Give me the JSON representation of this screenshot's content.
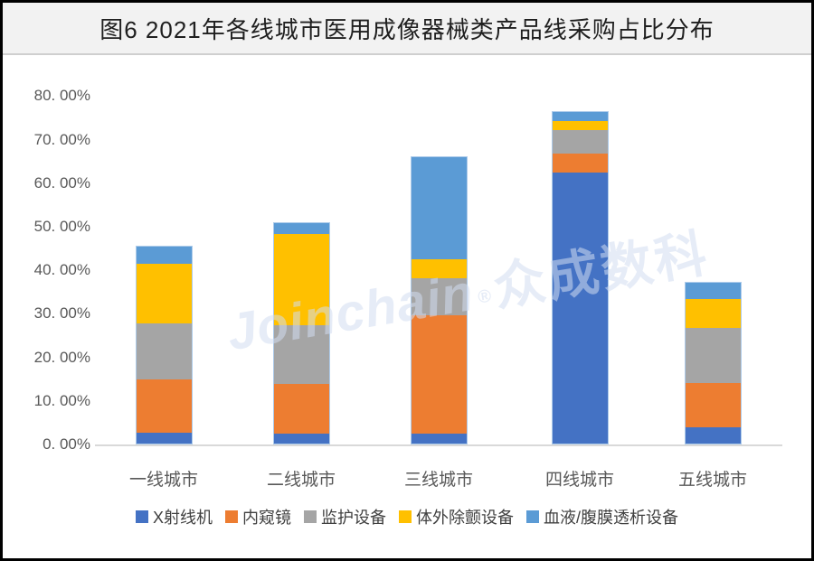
{
  "title": "图6 2021年各线城市医用成像器械类产品线采购占比分布",
  "watermark": {
    "latin": "Joinchain",
    "reg": "®",
    "cjk": "众成数科"
  },
  "chart_data": {
    "type": "bar",
    "subtype": "stacked-vertical",
    "title": "图6 2021年各线城市医用成像器械类产品线采购占比分布",
    "categories": [
      "一线城市",
      "二线城市",
      "三线城市",
      "四线城市",
      "五线城市"
    ],
    "series": [
      {
        "name": "X射线机",
        "color": "#4472C4",
        "values": [
          2.4,
          2.2,
          2.3,
          62.5,
          3.7
        ]
      },
      {
        "name": "内窥镜",
        "color": "#ED7D31",
        "values": [
          12.5,
          11.7,
          27.4,
          4.4,
          10.4
        ]
      },
      {
        "name": "监护设备",
        "color": "#A5A5A5",
        "values": [
          12.9,
          13.6,
          8.6,
          5.5,
          12.8
        ]
      },
      {
        "name": "体外除颤设备",
        "color": "#FFC000",
        "values": [
          13.8,
          21.0,
          4.3,
          2.1,
          6.6
        ]
      },
      {
        "name": "血液/腹膜透析设备",
        "color": "#5B9BD5",
        "values": [
          4.0,
          2.6,
          23.5,
          2.1,
          3.9
        ]
      }
    ],
    "totals": [
      45.6,
      51.1,
      66.1,
      76.6,
      37.4
    ],
    "y_tick_labels": [
      "0. 00%",
      "10. 00%",
      "20. 00%",
      "30. 00%",
      "40. 00%",
      "50. 00%",
      "60. 00%",
      "70. 00%",
      "80. 00%"
    ],
    "ylim": [
      0,
      80
    ],
    "xlabel": "",
    "ylabel": "",
    "grid": false,
    "legend_position": "bottom",
    "axis_text_color": "#595959",
    "baseline_color": "#d9d9d9"
  }
}
